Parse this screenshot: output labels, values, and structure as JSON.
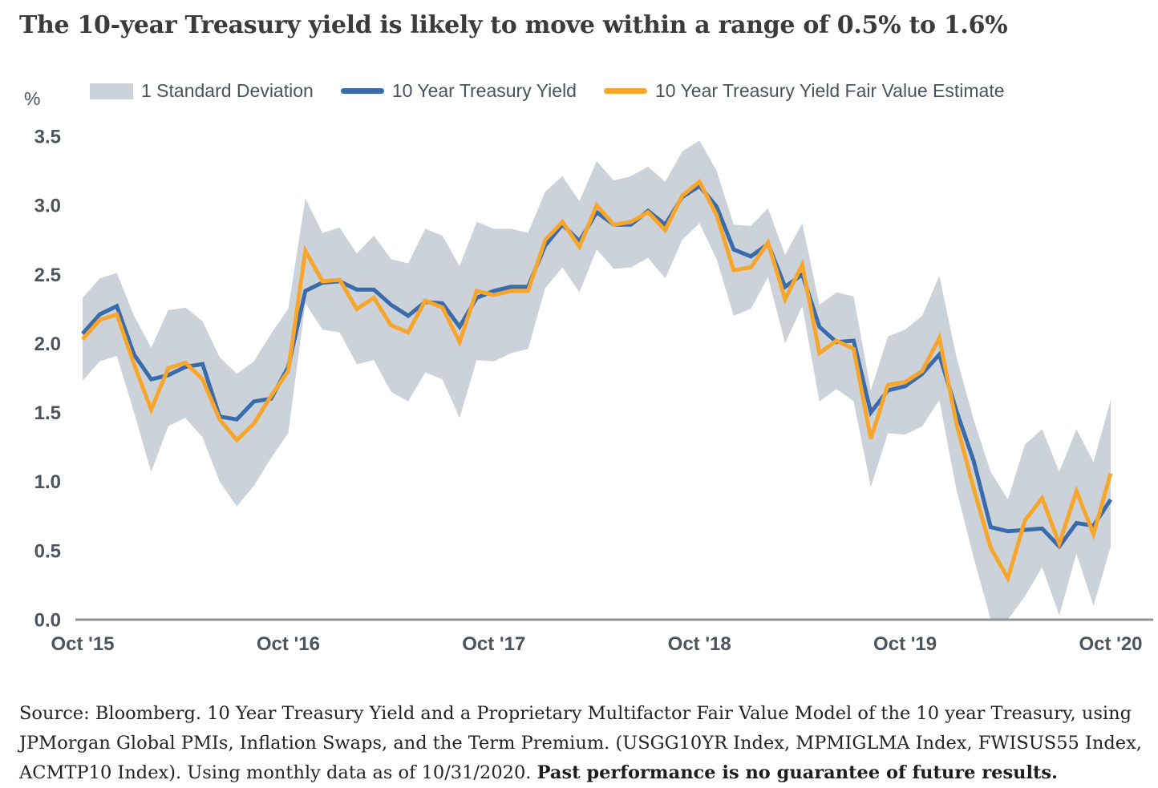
{
  "title": "The 10-year Treasury yield is likely to move within a range of 0.5% to 1.6%",
  "legend": {
    "items": [
      {
        "label": "1 Standard Deviation",
        "type": "band",
        "color": "#cbd2d9"
      },
      {
        "label": "10 Year Treasury Yield",
        "type": "line",
        "color": "#3a6bab"
      },
      {
        "label": "10 Year Treasury Yield Fair Value Estimate",
        "type": "line",
        "color": "#f7a62b"
      }
    ]
  },
  "footer": {
    "text_regular": "Source: Bloomberg. 10 Year Treasury Yield and a Proprietary Multifactor Fair Value Model of the 10 year Treasury, using JPMorgan Global PMIs, Inflation Swaps, and the Term Premium. (USGG10YR Index, MPMIGLMA Index, FWISUS55 Index, ACMTP10 Index). Using monthly data as of 10/31/2020. ",
    "text_bold": "Past performance is no guarantee of future results."
  },
  "colors": {
    "band": "#cbd2d9",
    "yield_line": "#3a6bab",
    "fair_value_line": "#f7a62b",
    "axis_line": "#8f9396",
    "tick_text": "#4c545e",
    "title_text": "#3b3b39"
  },
  "chart_data": {
    "type": "line",
    "title": "The 10-year Treasury yield is likely to move within a range of 0.5% to 1.6%",
    "ylabel": "%",
    "xlabel": "",
    "ylim": [
      0.0,
      3.5
    ],
    "grid": false,
    "legend_position": "top",
    "frequency": "monthly",
    "x": [
      "2015-10",
      "2015-11",
      "2015-12",
      "2016-01",
      "2016-02",
      "2016-03",
      "2016-04",
      "2016-05",
      "2016-06",
      "2016-07",
      "2016-08",
      "2016-09",
      "2016-10",
      "2016-11",
      "2016-12",
      "2017-01",
      "2017-02",
      "2017-03",
      "2017-04",
      "2017-05",
      "2017-06",
      "2017-07",
      "2017-08",
      "2017-09",
      "2017-10",
      "2017-11",
      "2017-12",
      "2018-01",
      "2018-02",
      "2018-03",
      "2018-04",
      "2018-05",
      "2018-06",
      "2018-07",
      "2018-08",
      "2018-09",
      "2018-10",
      "2018-11",
      "2018-12",
      "2019-01",
      "2019-02",
      "2019-03",
      "2019-04",
      "2019-05",
      "2019-06",
      "2019-07",
      "2019-08",
      "2019-09",
      "2019-10",
      "2019-11",
      "2019-12",
      "2020-01",
      "2020-02",
      "2020-03",
      "2020-04",
      "2020-05",
      "2020-06",
      "2020-07",
      "2020-08",
      "2020-09",
      "2020-10"
    ],
    "xticks": [
      {
        "index": 0,
        "label": "Oct '15"
      },
      {
        "index": 12,
        "label": "Oct '16"
      },
      {
        "index": 24,
        "label": "Oct '17"
      },
      {
        "index": 36,
        "label": "Oct '18"
      },
      {
        "index": 48,
        "label": "Oct '19"
      },
      {
        "index": 60,
        "label": "Oct '20"
      }
    ],
    "yticks": [
      {
        "value": 0.0,
        "label": "0.0"
      },
      {
        "value": 0.5,
        "label": "0.5"
      },
      {
        "value": 1.0,
        "label": "1.0"
      },
      {
        "value": 1.5,
        "label": "1.5"
      },
      {
        "value": 2.0,
        "label": "2.0"
      },
      {
        "value": 2.5,
        "label": "2.5"
      },
      {
        "value": 3.0,
        "label": "3.0"
      },
      {
        "value": 3.5,
        "label": "3.5"
      }
    ],
    "series": [
      {
        "name": "10 Year Treasury Yield",
        "type": "line",
        "color": "#3a6bab",
        "values": [
          2.07,
          2.21,
          2.27,
          1.92,
          1.74,
          1.77,
          1.83,
          1.85,
          1.47,
          1.45,
          1.58,
          1.6,
          1.83,
          2.38,
          2.44,
          2.45,
          2.39,
          2.39,
          2.28,
          2.2,
          2.3,
          2.29,
          2.12,
          2.33,
          2.38,
          2.41,
          2.41,
          2.71,
          2.86,
          2.74,
          2.95,
          2.86,
          2.86,
          2.96,
          2.86,
          3.06,
          3.14,
          2.99,
          2.68,
          2.63,
          2.72,
          2.41,
          2.5,
          2.12,
          2.01,
          2.02,
          1.5,
          1.66,
          1.69,
          1.78,
          1.92,
          1.51,
          1.15,
          0.67,
          0.64,
          0.65,
          0.66,
          0.53,
          0.7,
          0.68,
          0.87
        ]
      },
      {
        "name": "10 Year Treasury Yield Fair Value Estimate",
        "type": "line",
        "color": "#f7a62b",
        "values": [
          2.03,
          2.17,
          2.21,
          1.85,
          1.52,
          1.82,
          1.86,
          1.74,
          1.45,
          1.3,
          1.42,
          1.62,
          1.8,
          2.67,
          2.45,
          2.46,
          2.25,
          2.33,
          2.13,
          2.08,
          2.31,
          2.26,
          2.01,
          2.38,
          2.35,
          2.38,
          2.38,
          2.75,
          2.88,
          2.7,
          3.0,
          2.86,
          2.88,
          2.95,
          2.82,
          3.07,
          3.17,
          2.93,
          2.53,
          2.55,
          2.73,
          2.32,
          2.57,
          1.93,
          2.02,
          1.96,
          1.31,
          1.7,
          1.72,
          1.8,
          2.04,
          1.42,
          0.95,
          0.52,
          0.3,
          0.72,
          0.88,
          0.55,
          0.93,
          0.62,
          1.06
        ]
      },
      {
        "name": "1 Standard Deviation",
        "type": "band",
        "color": "#cbd2d9",
        "upper": [
          2.33,
          2.47,
          2.51,
          2.2,
          1.97,
          2.24,
          2.26,
          2.16,
          1.9,
          1.78,
          1.87,
          2.07,
          2.25,
          3.05,
          2.8,
          2.84,
          2.65,
          2.78,
          2.61,
          2.58,
          2.83,
          2.78,
          2.56,
          2.88,
          2.83,
          2.83,
          2.8,
          3.1,
          3.21,
          3.03,
          3.32,
          3.18,
          3.21,
          3.28,
          3.17,
          3.39,
          3.47,
          3.25,
          2.86,
          2.85,
          2.98,
          2.64,
          2.87,
          2.28,
          2.37,
          2.34,
          1.66,
          2.05,
          2.1,
          2.2,
          2.49,
          1.9,
          1.45,
          1.07,
          0.87,
          1.27,
          1.38,
          1.07,
          1.38,
          1.14,
          1.59
        ],
        "lower": [
          1.73,
          1.87,
          1.91,
          1.5,
          1.07,
          1.4,
          1.46,
          1.32,
          1.0,
          0.82,
          0.97,
          1.17,
          1.35,
          2.29,
          2.1,
          2.08,
          1.85,
          1.88,
          1.65,
          1.58,
          1.79,
          1.74,
          1.46,
          1.88,
          1.87,
          1.93,
          1.96,
          2.4,
          2.55,
          2.37,
          2.68,
          2.54,
          2.55,
          2.62,
          2.47,
          2.75,
          2.87,
          2.61,
          2.2,
          2.25,
          2.48,
          2.0,
          2.27,
          1.58,
          1.67,
          1.58,
          0.96,
          1.35,
          1.34,
          1.4,
          1.59,
          0.94,
          0.45,
          0.0,
          0.0,
          0.17,
          0.38,
          0.03,
          0.48,
          0.1,
          0.53
        ]
      }
    ]
  }
}
